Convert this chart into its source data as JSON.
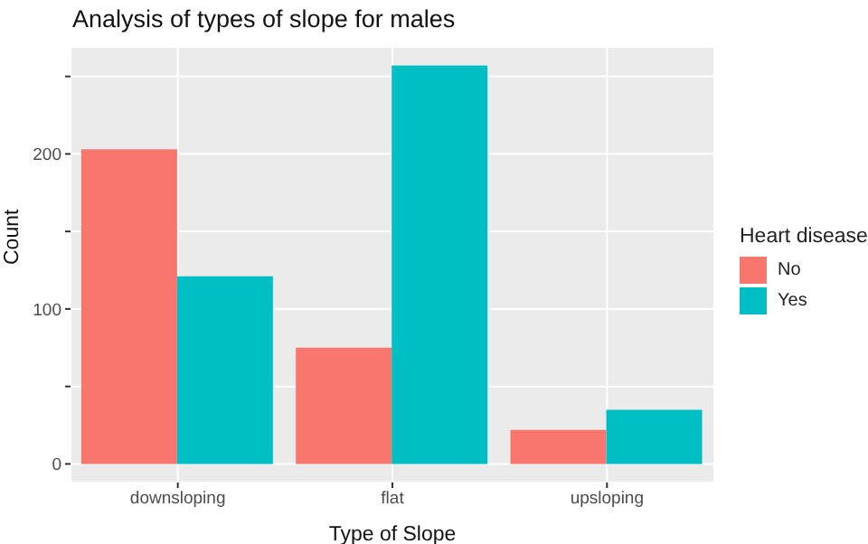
{
  "chart_data": {
    "type": "bar",
    "title": "Analysis of types of slope for males",
    "xlabel": "Type of Slope",
    "ylabel": "Count",
    "legend_title": "Heart disease",
    "categories": [
      "downsloping",
      "flat",
      "upsloping"
    ],
    "series": [
      {
        "name": "No",
        "color": "#f8766d",
        "values": [
          203,
          75,
          22
        ]
      },
      {
        "name": "Yes",
        "color": "#00bfc4",
        "values": [
          121,
          257,
          35
        ]
      }
    ],
    "ylim": [
      -12,
      269
    ],
    "yticks": [
      0,
      {
        "value": 50,
        "label": null
      },
      100,
      {
        "value": 150,
        "label": null
      },
      200,
      {
        "value": 250,
        "label": null
      }
    ],
    "grid": true,
    "legend": "right"
  }
}
